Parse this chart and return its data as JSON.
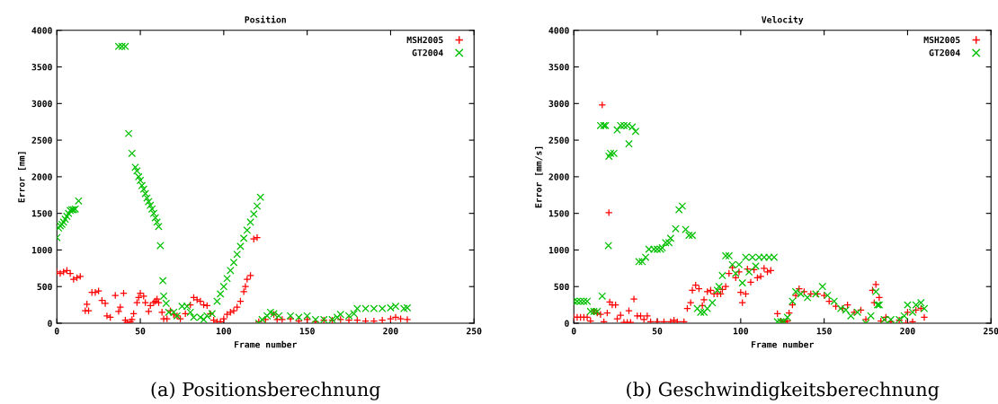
{
  "chart_data": [
    {
      "type": "scatter",
      "title": "Position",
      "xlabel": "Frame number",
      "ylabel": "Error [mm]",
      "xlim": [
        0,
        250
      ],
      "xticks": [
        0,
        50,
        100,
        150,
        200,
        250
      ],
      "ylim": [
        0,
        4000
      ],
      "yticks": [
        0,
        500,
        1000,
        1500,
        2000,
        2500,
        3000,
        3500,
        4000
      ],
      "legend": "top right",
      "grid": false,
      "annotations": [
        "(a) Positionsberechnung"
      ],
      "series": [
        {
          "name": "MSH2005",
          "color": "#ff0000",
          "marker": "plus",
          "x": [
            0,
            2,
            4,
            6,
            8,
            10,
            12,
            14,
            17,
            18,
            19,
            21,
            23,
            25,
            27,
            29,
            30,
            32,
            35,
            37,
            38,
            40,
            41,
            42,
            44,
            45,
            46,
            48,
            49,
            50,
            52,
            53,
            55,
            56,
            58,
            59,
            60,
            61,
            63,
            64,
            66,
            68,
            70,
            72,
            74,
            77,
            80,
            82,
            84,
            86,
            88,
            90,
            92,
            94,
            96,
            98,
            100,
            102,
            104,
            106,
            108,
            110,
            112,
            113,
            114,
            116,
            118,
            120,
            121,
            125,
            130,
            132,
            135,
            140,
            145,
            150,
            155,
            160,
            165,
            170,
            175,
            180,
            185,
            190,
            195,
            200,
            203,
            206,
            210
          ],
          "values": [
            700,
            680,
            700,
            720,
            680,
            600,
            620,
            640,
            170,
            260,
            170,
            420,
            420,
            440,
            310,
            270,
            100,
            80,
            380,
            160,
            220,
            410,
            40,
            10,
            20,
            50,
            130,
            280,
            350,
            410,
            370,
            280,
            160,
            240,
            280,
            300,
            330,
            280,
            150,
            60,
            60,
            170,
            120,
            100,
            60,
            130,
            250,
            350,
            320,
            300,
            250,
            240,
            130,
            40,
            20,
            20,
            60,
            120,
            150,
            170,
            220,
            300,
            430,
            500,
            600,
            650,
            1150,
            1170,
            20,
            50,
            120,
            50,
            50,
            60,
            30,
            50,
            20,
            40,
            40,
            50,
            40,
            40,
            30,
            30,
            40,
            60,
            80,
            60,
            50
          ]
        },
        {
          "name": "GT2004",
          "color": "#00c000",
          "marker": "cross",
          "x": [
            0,
            1,
            2,
            3,
            4,
            5,
            6,
            7,
            8,
            9,
            10,
            11,
            13,
            37,
            39,
            41,
            43,
            45,
            47,
            48,
            49,
            50,
            51,
            52,
            53,
            54,
            55,
            56,
            57,
            58,
            59,
            60,
            61,
            62,
            63.5,
            64,
            65.5,
            67,
            70,
            72,
            75,
            78,
            80,
            82,
            86,
            88,
            90,
            93,
            96,
            98,
            100,
            102,
            104,
            106,
            108,
            110,
            112,
            114,
            116,
            118,
            120,
            122,
            121,
            123,
            126,
            128,
            130,
            133,
            140,
            145,
            150,
            155,
            160,
            165,
            168,
            170,
            175,
            178,
            180,
            185,
            190,
            195,
            200,
            203,
            208,
            210
          ],
          "values": [
            1170,
            1300,
            1330,
            1350,
            1380,
            1420,
            1460,
            1500,
            1540,
            1550,
            1550,
            1560,
            1670,
            3780,
            3780,
            3780,
            2590,
            2320,
            2130,
            2080,
            2000,
            1950,
            1880,
            1830,
            1770,
            1710,
            1660,
            1610,
            1560,
            1500,
            1440,
            1380,
            1320,
            1060,
            580,
            370,
            270,
            150,
            150,
            100,
            230,
            230,
            150,
            80,
            80,
            50,
            100,
            130,
            300,
            400,
            500,
            610,
            720,
            830,
            940,
            1050,
            1160,
            1270,
            1380,
            1490,
            1600,
            1720,
            0,
            50,
            100,
            150,
            130,
            100,
            100,
            80,
            100,
            50,
            50,
            50,
            80,
            120,
            100,
            130,
            200,
            200,
            200,
            200,
            210,
            230,
            200,
            210
          ]
        }
      ]
    },
    {
      "type": "scatter",
      "title": "Velocity",
      "xlabel": "Frame number",
      "ylabel": "Error [mm/s]",
      "xlim": [
        0,
        250
      ],
      "xticks": [
        0,
        50,
        100,
        150,
        200,
        250
      ],
      "ylim": [
        0,
        4000
      ],
      "yticks": [
        0,
        500,
        1000,
        1500,
        2000,
        2500,
        3000,
        3500,
        4000
      ],
      "legend": "top right",
      "grid": false,
      "annotations": [
        "(b) Geschwindigkeitsberechnung"
      ],
      "series": [
        {
          "name": "MSH2005",
          "color": "#ff0000",
          "marker": "plus",
          "x": [
            0,
            2,
            4,
            6,
            8,
            10,
            12,
            14,
            16,
            18,
            17,
            21,
            21.5,
            20,
            23,
            25,
            26,
            28,
            30,
            32,
            34,
            33,
            36,
            38,
            40,
            42,
            44,
            46,
            50,
            54,
            58,
            60,
            62,
            66,
            68,
            70,
            71,
            73,
            75,
            77,
            78,
            80,
            82,
            84,
            86,
            88,
            89,
            91,
            93,
            95,
            97,
            99,
            100,
            101,
            103,
            104,
            106,
            108,
            110,
            112,
            114,
            116,
            118,
            122,
            124,
            126,
            128,
            129,
            131,
            133,
            135,
            138,
            142,
            146,
            150,
            153,
            157,
            161,
            164,
            168,
            172,
            175,
            179,
            181,
            180,
            183,
            184,
            187,
            190,
            195,
            199,
            200,
            203,
            205,
            208,
            210
          ],
          "values": [
            80,
            80,
            80,
            80,
            80,
            30,
            160,
            140,
            120,
            20,
            2980,
            1510,
            290,
            140,
            250,
            250,
            60,
            110,
            10,
            10,
            10,
            170,
            330,
            100,
            100,
            50,
            100,
            20,
            20,
            20,
            20,
            40,
            20,
            20,
            200,
            280,
            450,
            520,
            470,
            240,
            320,
            430,
            450,
            400,
            400,
            400,
            460,
            500,
            680,
            760,
            620,
            700,
            420,
            280,
            400,
            740,
            560,
            730,
            620,
            640,
            750,
            700,
            720,
            130,
            30,
            20,
            30,
            140,
            250,
            380,
            470,
            430,
            400,
            400,
            380,
            300,
            230,
            200,
            250,
            150,
            180,
            50,
            450,
            530,
            280,
            350,
            30,
            80,
            20,
            40,
            0,
            150,
            20,
            180,
            200,
            80
          ]
        },
        {
          "name": "GT2004",
          "color": "#00c000",
          "marker": "cross",
          "x": [
            0,
            2,
            4,
            6,
            8,
            10,
            12,
            14,
            17,
            16,
            18,
            19,
            21,
            22,
            24,
            20.7,
            26,
            28,
            30,
            32,
            33,
            35,
            37,
            39,
            41,
            43,
            45,
            48,
            50,
            52,
            53,
            55,
            57,
            58,
            61,
            63,
            65,
            67,
            69,
            71,
            74,
            76,
            78,
            80,
            83,
            86,
            87,
            89,
            91,
            93,
            95,
            97,
            99,
            101,
            103,
            105,
            107,
            109,
            111,
            114,
            117,
            120,
            122,
            124,
            126,
            128,
            131,
            133,
            136,
            140,
            145,
            149,
            152,
            156,
            160,
            163,
            166,
            170,
            175,
            178,
            181,
            182,
            183,
            186,
            190,
            195,
            198,
            200,
            203,
            205,
            208,
            210
          ],
          "values": [
            300,
            300,
            300,
            300,
            300,
            160,
            160,
            160,
            370,
            2700,
            2700,
            2700,
            2280,
            2320,
            2320,
            1060,
            2640,
            2700,
            2700,
            2700,
            2450,
            2680,
            2620,
            840,
            840,
            900,
            1010,
            1010,
            1010,
            1010,
            1030,
            1100,
            1100,
            1160,
            1290,
            1550,
            1600,
            1280,
            1200,
            1200,
            200,
            150,
            150,
            200,
            280,
            450,
            500,
            650,
            920,
            920,
            800,
            680,
            800,
            550,
            900,
            700,
            900,
            780,
            900,
            900,
            900,
            900,
            20,
            20,
            20,
            80,
            300,
            430,
            400,
            350,
            400,
            500,
            380,
            300,
            200,
            180,
            100,
            150,
            0,
            100,
            430,
            250,
            250,
            50,
            50,
            50,
            100,
            250,
            150,
            250,
            280,
            200
          ]
        }
      ]
    }
  ]
}
